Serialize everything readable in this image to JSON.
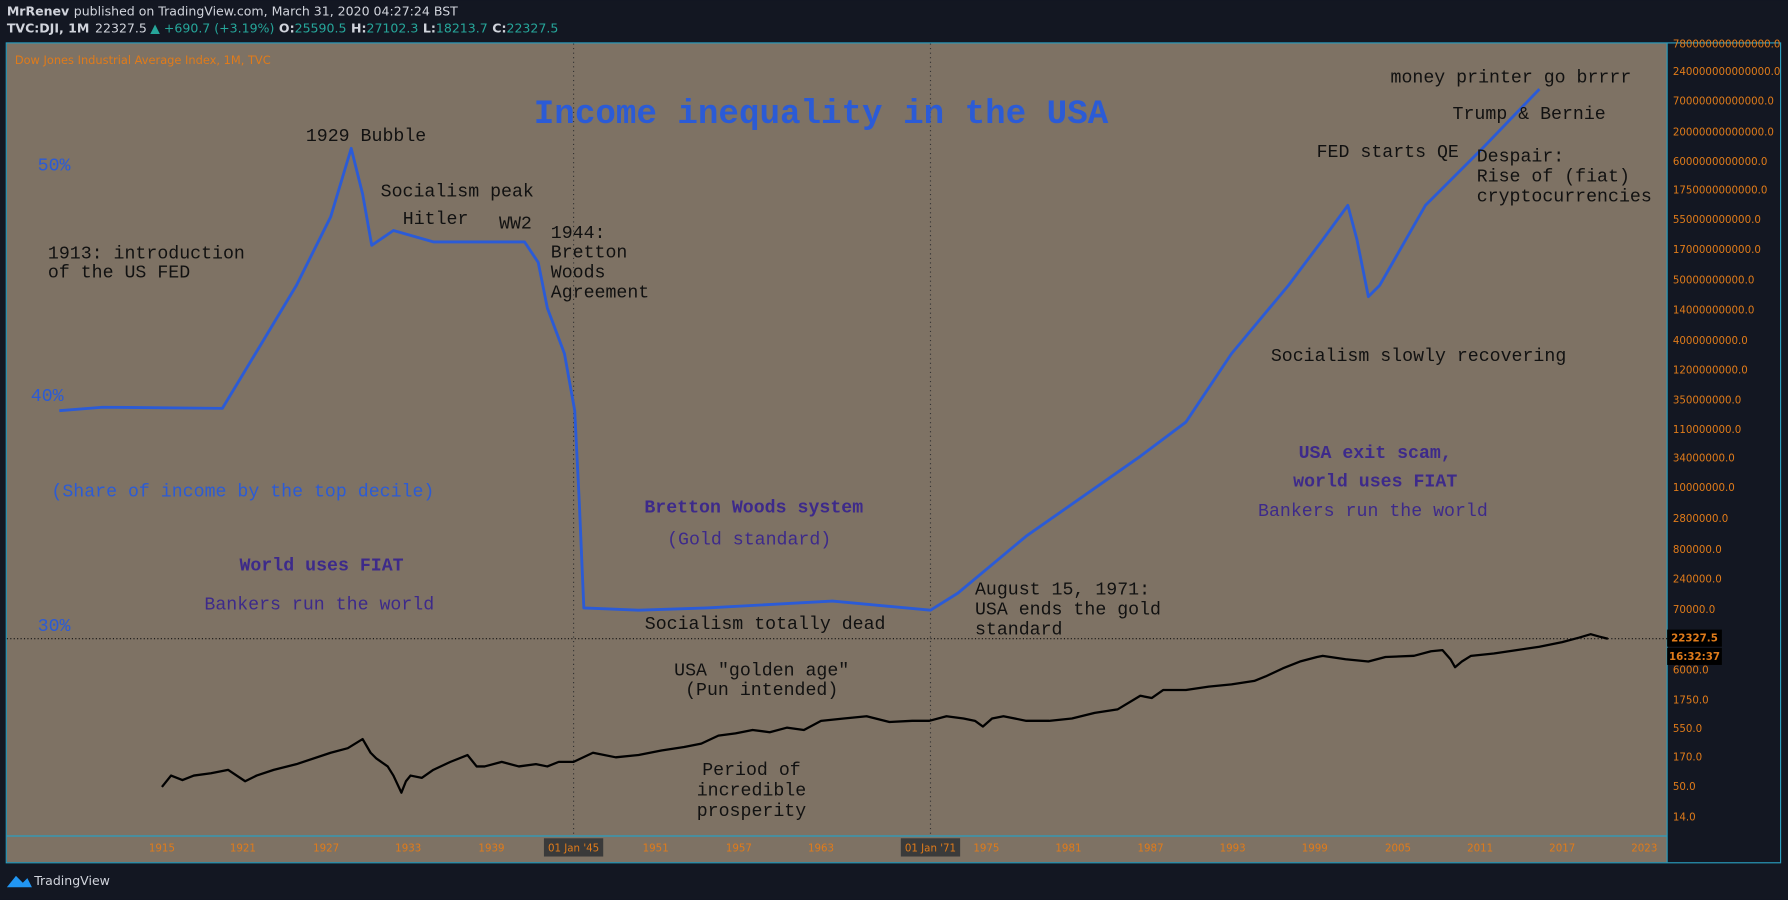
{
  "header": {
    "author": "MrRenev",
    "published": "published on TradingView.com, March 31, 2020 04:27:24 BST",
    "symbol": "TVC:DJI, 1M",
    "last": "22327.5",
    "change": "▲ +690.7 (+3.19%)",
    "ohlc": [
      [
        "O:",
        "25590.5"
      ],
      [
        "H:",
        "27102.3"
      ],
      [
        "L:",
        "18213.7"
      ],
      [
        "C:",
        "22327.5"
      ]
    ]
  },
  "chart": {
    "legend": "Dow Jones Industrial Average Index, 1M, TVC",
    "title": "Income inequality in the USA",
    "annotations": [
      {
        "lines": [
          "50%"
        ]
      },
      {
        "lines": [
          "40%"
        ]
      },
      {
        "lines": [
          "30%"
        ]
      },
      {
        "lines": [
          "(Share of income by the top decile)"
        ]
      },
      {
        "lines": [
          "1913: introduction",
          "of the US FED"
        ]
      },
      {
        "lines": [
          "1929 Bubble"
        ]
      },
      {
        "lines": [
          "Socialism peak"
        ]
      },
      {
        "lines": [
          "Hitler"
        ]
      },
      {
        "lines": [
          "WW2"
        ]
      },
      {
        "lines": [
          "1944:",
          "Bretton",
          "Woods",
          "Agreement"
        ]
      },
      {
        "lines": [
          "World uses FIAT"
        ]
      },
      {
        "lines": [
          "Bankers run the world"
        ]
      },
      {
        "lines": [
          "Bretton Woods system"
        ]
      },
      {
        "lines": [
          "(Gold standard)"
        ]
      },
      {
        "lines": [
          "Socialism totally dead"
        ]
      },
      {
        "lines": [
          "USA \"golden age\"",
          "(Pun intended)"
        ]
      },
      {
        "lines": [
          "Period of",
          "incredible",
          "prosperity"
        ]
      },
      {
        "lines": [
          "August 15, 1971:",
          "USA ends the gold",
          "standard"
        ]
      },
      {
        "lines": [
          "Socialism slowly recovering"
        ]
      },
      {
        "lines": [
          "USA exit scam,",
          "world uses FIAT"
        ]
      },
      {
        "lines": [
          "Bankers run the world"
        ]
      },
      {
        "lines": [
          "FED starts QE"
        ]
      },
      {
        "lines": [
          "money printer go brrrr"
        ]
      },
      {
        "lines": [
          "Trump & Bernie"
        ]
      },
      {
        "lines": [
          "Despair:",
          "Rise of (fiat)",
          "cryptocurrencies"
        ]
      }
    ],
    "x_axis": [
      "1915",
      "1921",
      "1927",
      "1933",
      "1939",
      "01 Jan '45",
      "1951",
      "1957",
      "1963",
      "01 Jan '71",
      "1975",
      "1981",
      "1987",
      "1993",
      "1999",
      "2005",
      "2011",
      "2017",
      "2023"
    ],
    "y_axis": [
      "780000000000000.0",
      "240000000000000.0",
      "70000000000000.0",
      "20000000000000.0",
      "6000000000000.0",
      "1750000000000.0",
      "550000000000.0",
      "170000000000.0",
      "50000000000.0",
      "14000000000.0",
      "4000000000.0",
      "1200000000.0",
      "350000000.0",
      "110000000.0",
      "34000000.0",
      "10000000.0",
      "2800000.0",
      "800000.0",
      "240000.0",
      "70000.0",
      "6000.0",
      "1750.0",
      "550.0",
      "170.0",
      "50.0",
      "14.0"
    ],
    "price_label": "22327.5",
    "countdown": "16:32:37"
  },
  "footer": {
    "brand": "TradingView"
  }
}
